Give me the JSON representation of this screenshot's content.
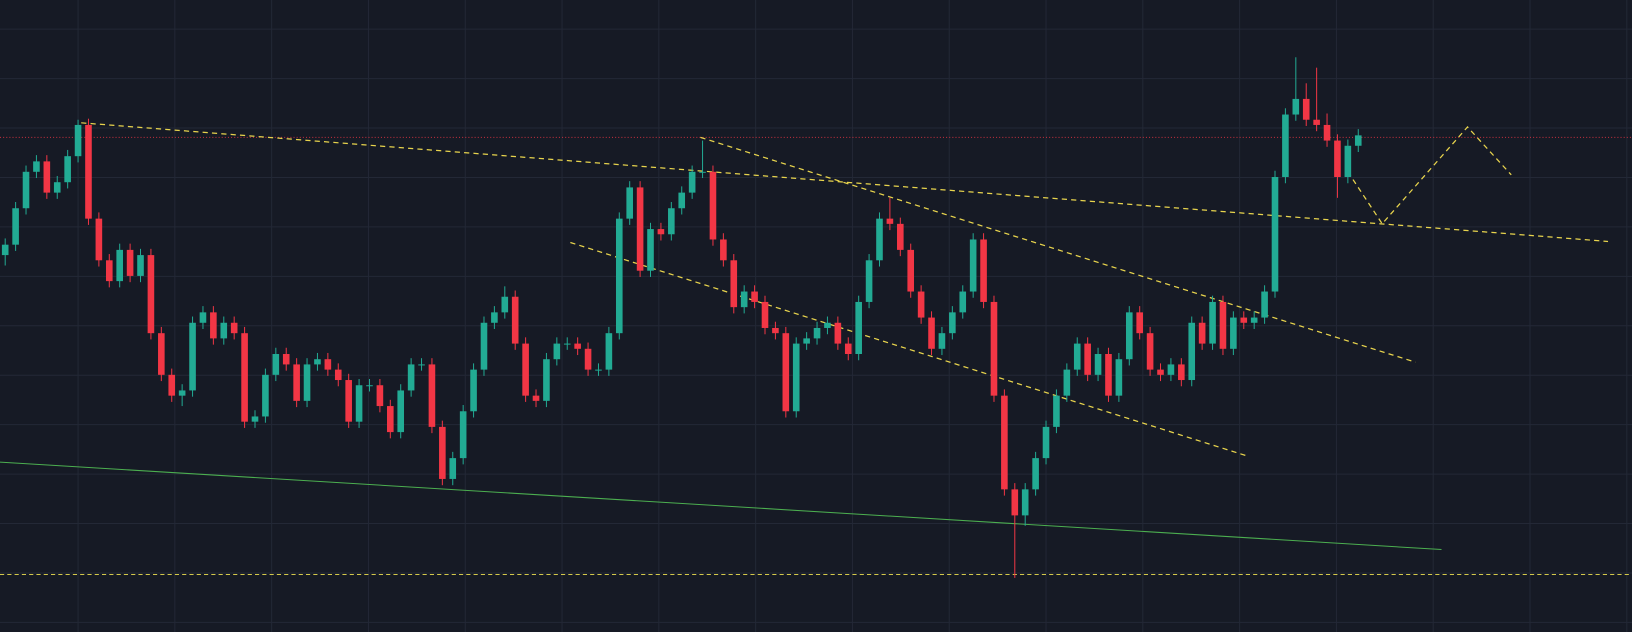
{
  "chart_data": {
    "type": "candlestick",
    "up_color": "#22ab94",
    "down_color": "#f23645",
    "ylim": [
      -7,
      600
    ],
    "grid": true,
    "candles": [
      [
        355,
        371,
        345,
        365
      ],
      [
        365,
        406,
        359,
        400
      ],
      [
        400,
        441,
        394,
        435
      ],
      [
        435,
        451,
        429,
        445
      ],
      [
        445,
        451,
        409,
        415
      ],
      [
        415,
        431,
        409,
        425
      ],
      [
        425,
        456,
        419,
        450
      ],
      [
        450,
        485,
        444,
        480
      ],
      [
        480,
        486,
        384,
        390
      ],
      [
        390,
        396,
        344,
        350
      ],
      [
        350,
        356,
        324,
        330
      ],
      [
        330,
        366,
        324,
        360
      ],
      [
        360,
        366,
        329,
        335
      ],
      [
        335,
        361,
        329,
        355
      ],
      [
        355,
        361,
        274,
        280
      ],
      [
        280,
        286,
        234,
        240
      ],
      [
        240,
        246,
        214,
        220
      ],
      [
        220,
        231,
        210,
        225
      ],
      [
        225,
        296,
        219,
        290
      ],
      [
        290,
        306,
        284,
        300
      ],
      [
        300,
        306,
        269,
        275
      ],
      [
        275,
        296,
        269,
        290
      ],
      [
        290,
        296,
        274,
        280
      ],
      [
        280,
        286,
        189,
        195
      ],
      [
        195,
        206,
        189,
        200
      ],
      [
        200,
        246,
        194,
        240
      ],
      [
        240,
        266,
        234,
        260
      ],
      [
        260,
        266,
        244,
        250
      ],
      [
        250,
        256,
        209,
        215
      ],
      [
        215,
        256,
        209,
        250
      ],
      [
        250,
        261,
        244,
        255
      ],
      [
        255,
        261,
        239,
        245
      ],
      [
        245,
        251,
        229,
        235
      ],
      [
        235,
        241,
        189,
        195
      ],
      [
        195,
        236,
        189,
        230
      ],
      [
        230,
        236,
        224,
        230
      ],
      [
        230,
        236,
        204,
        210
      ],
      [
        210,
        216,
        179,
        185
      ],
      [
        185,
        231,
        179,
        225
      ],
      [
        225,
        256,
        219,
        250
      ],
      [
        250,
        256,
        244,
        250
      ],
      [
        250,
        256,
        184,
        190
      ],
      [
        190,
        196,
        134,
        140
      ],
      [
        140,
        166,
        134,
        160
      ],
      [
        160,
        211,
        154,
        205
      ],
      [
        205,
        251,
        199,
        245
      ],
      [
        245,
        296,
        239,
        290
      ],
      [
        290,
        306,
        284,
        300
      ],
      [
        300,
        325,
        294,
        315
      ],
      [
        315,
        321,
        264,
        270
      ],
      [
        270,
        276,
        214,
        220
      ],
      [
        220,
        226,
        209,
        215
      ],
      [
        215,
        261,
        209,
        255
      ],
      [
        255,
        276,
        249,
        270
      ],
      [
        270,
        276,
        264,
        270
      ],
      [
        270,
        276,
        259,
        265
      ],
      [
        265,
        271,
        239,
        245
      ],
      [
        245,
        251,
        239,
        245
      ],
      [
        245,
        286,
        239,
        280
      ],
      [
        280,
        396,
        274,
        390
      ],
      [
        390,
        426,
        384,
        420
      ],
      [
        420,
        426,
        334,
        340
      ],
      [
        340,
        386,
        334,
        380
      ],
      [
        380,
        386,
        369,
        375
      ],
      [
        375,
        406,
        369,
        400
      ],
      [
        400,
        421,
        394,
        415
      ],
      [
        415,
        441,
        409,
        435
      ],
      [
        435,
        465,
        429,
        435
      ],
      [
        435,
        441,
        364,
        370
      ],
      [
        370,
        376,
        344,
        350
      ],
      [
        350,
        356,
        299,
        305
      ],
      [
        305,
        326,
        299,
        320
      ],
      [
        320,
        326,
        304,
        310
      ],
      [
        310,
        316,
        279,
        285
      ],
      [
        285,
        291,
        274,
        280
      ],
      [
        280,
        286,
        199,
        205
      ],
      [
        205,
        276,
        199,
        270
      ],
      [
        270,
        281,
        264,
        275
      ],
      [
        275,
        291,
        269,
        285
      ],
      [
        285,
        296,
        279,
        290
      ],
      [
        290,
        296,
        264,
        270
      ],
      [
        270,
        276,
        254,
        260
      ],
      [
        260,
        316,
        254,
        310
      ],
      [
        310,
        356,
        304,
        350
      ],
      [
        350,
        396,
        344,
        390
      ],
      [
        390,
        410,
        379,
        385
      ],
      [
        385,
        391,
        354,
        360
      ],
      [
        360,
        366,
        314,
        320
      ],
      [
        320,
        326,
        289,
        295
      ],
      [
        295,
        301,
        259,
        265
      ],
      [
        265,
        286,
        259,
        280
      ],
      [
        280,
        306,
        274,
        300
      ],
      [
        300,
        326,
        294,
        320
      ],
      [
        320,
        376,
        314,
        370
      ],
      [
        370,
        376,
        304,
        310
      ],
      [
        310,
        316,
        214,
        220
      ],
      [
        220,
        226,
        124,
        130
      ],
      [
        130,
        136,
        45,
        105
      ],
      [
        105,
        136,
        95,
        130
      ],
      [
        130,
        166,
        124,
        160
      ],
      [
        160,
        196,
        154,
        190
      ],
      [
        190,
        226,
        184,
        220
      ],
      [
        220,
        251,
        214,
        245
      ],
      [
        245,
        276,
        239,
        270
      ],
      [
        270,
        276,
        234,
        240
      ],
      [
        240,
        266,
        234,
        260
      ],
      [
        260,
        266,
        214,
        220
      ],
      [
        220,
        261,
        214,
        255
      ],
      [
        255,
        306,
        249,
        300
      ],
      [
        300,
        306,
        274,
        280
      ],
      [
        280,
        286,
        239,
        245
      ],
      [
        245,
        251,
        234,
        240
      ],
      [
        240,
        256,
        234,
        250
      ],
      [
        250,
        256,
        229,
        235
      ],
      [
        235,
        296,
        229,
        290
      ],
      [
        290,
        296,
        264,
        270
      ],
      [
        270,
        316,
        264,
        310
      ],
      [
        310,
        316,
        259,
        265
      ],
      [
        265,
        301,
        259,
        295
      ],
      [
        295,
        301,
        284,
        290
      ],
      [
        290,
        301,
        284,
        295
      ],
      [
        295,
        326,
        289,
        320
      ],
      [
        320,
        436,
        314,
        430
      ],
      [
        430,
        496,
        424,
        490
      ],
      [
        490,
        545,
        484,
        505
      ],
      [
        505,
        520,
        479,
        485
      ],
      [
        485,
        535,
        474,
        480
      ],
      [
        480,
        491,
        459,
        465
      ],
      [
        465,
        471,
        410,
        430
      ],
      [
        430,
        466,
        424,
        460
      ],
      [
        460,
        476,
        454,
        470
      ]
    ]
  }
}
